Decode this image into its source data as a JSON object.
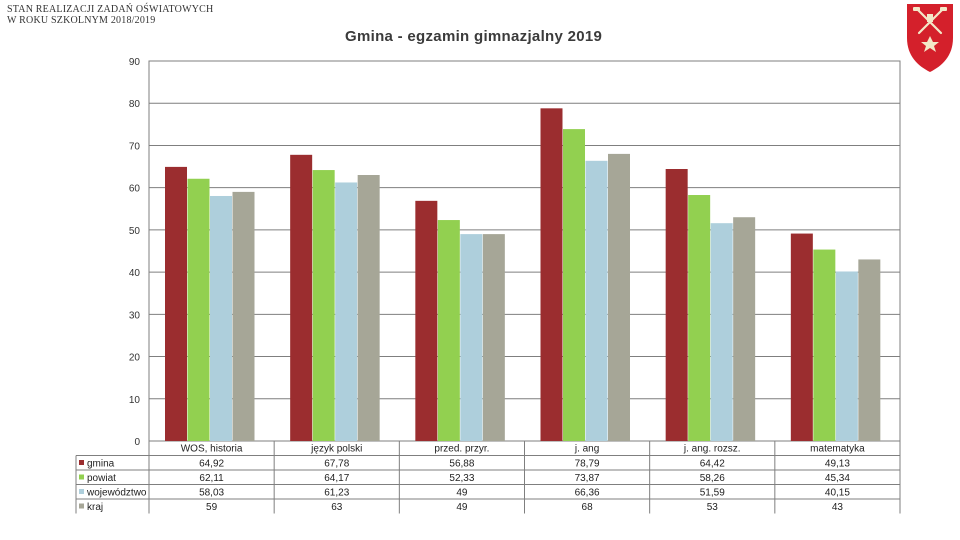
{
  "header": {
    "line1": "STAN REALIZACJI ZADAŃ OŚWIATOWYCH",
    "line2": "W ROKU SZKOLNYM 2018/2019"
  },
  "colors": {
    "gmina": "#9b2d2f",
    "powiat": "#92d050",
    "wojewodztwo": "#aecfdc",
    "kraj": "#a6a697",
    "grid": "#7f7f7f"
  },
  "chart_data": {
    "type": "bar",
    "title": "Gmina - egzamin gimnazjalny 2019",
    "categories": [
      "WOS, historia",
      "język polski",
      "przed. przyr.",
      "j. ang",
      "j. ang. rozsz.",
      "matematyka"
    ],
    "series": [
      {
        "name": "gmina",
        "values": [
          64.92,
          67.78,
          56.88,
          78.79,
          64.42,
          49.13
        ],
        "labels": [
          "64,92",
          "67,78",
          "56,88",
          "78,79",
          "64,42",
          "49,13"
        ]
      },
      {
        "name": "powiat",
        "values": [
          62.11,
          64.17,
          52.33,
          73.87,
          58.26,
          45.34
        ],
        "labels": [
          "62,11",
          "64,17",
          "52,33",
          "73,87",
          "58,26",
          "45,34"
        ]
      },
      {
        "name": "województwo",
        "values": [
          58.03,
          61.23,
          49,
          66.36,
          51.59,
          40.15
        ],
        "labels": [
          "58,03",
          "61,23",
          "49",
          "66,36",
          "51,59",
          "40,15"
        ]
      },
      {
        "name": "kraj",
        "values": [
          59,
          63,
          49,
          68,
          53,
          43
        ],
        "labels": [
          "59",
          "63",
          "49",
          "68",
          "53",
          "43"
        ]
      }
    ],
    "yticks": [
      "0",
      "10",
      "20",
      "30",
      "40",
      "50",
      "60",
      "70",
      "80",
      "90"
    ],
    "ylim": [
      0,
      90
    ],
    "grid": true,
    "legend": "data-table-left"
  }
}
